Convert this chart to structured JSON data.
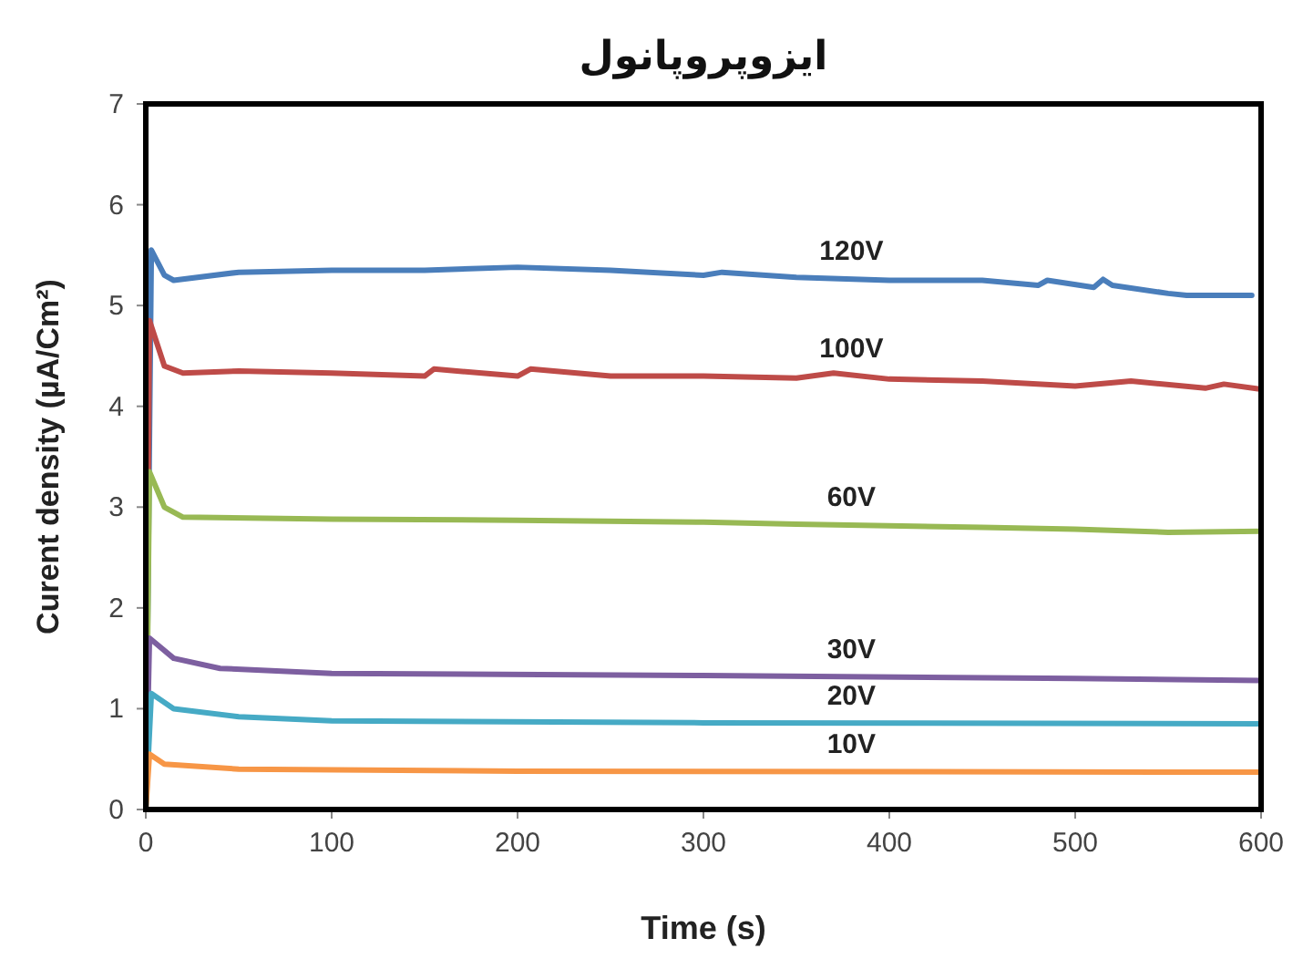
{
  "chart_data": {
    "type": "line",
    "title": "ایزوپروپانول",
    "xlabel": "Time (s)",
    "ylabel": "Curent density (µA/Cm²)",
    "xlim": [
      0,
      600
    ],
    "xticks": [
      0,
      100,
      200,
      300,
      400,
      500,
      600
    ],
    "ylim": [
      0,
      7
    ],
    "yticks": [
      0,
      1,
      2,
      3,
      4,
      5,
      6,
      7
    ],
    "grid": false,
    "legend": false,
    "series": [
      {
        "name": "120V",
        "color": "#4a7ebb",
        "x": [
          0,
          3,
          10,
          15,
          50,
          100,
          150,
          200,
          250,
          300,
          310,
          350,
          400,
          450,
          480,
          485,
          510,
          515,
          520,
          550,
          560,
          595
        ],
        "values": [
          0,
          5.55,
          5.3,
          5.25,
          5.33,
          5.35,
          5.35,
          5.38,
          5.35,
          5.3,
          5.33,
          5.28,
          5.25,
          5.25,
          5.2,
          5.25,
          5.18,
          5.26,
          5.2,
          5.12,
          5.1,
          5.1
        ]
      },
      {
        "name": "100V",
        "color": "#be4b48",
        "x": [
          0,
          2,
          10,
          20,
          50,
          100,
          150,
          155,
          200,
          207,
          250,
          300,
          350,
          370,
          400,
          450,
          500,
          530,
          570,
          580,
          600
        ],
        "values": [
          0,
          4.85,
          4.4,
          4.33,
          4.35,
          4.33,
          4.3,
          4.37,
          4.3,
          4.37,
          4.3,
          4.3,
          4.28,
          4.33,
          4.27,
          4.25,
          4.2,
          4.25,
          4.18,
          4.22,
          4.17
        ]
      },
      {
        "name": "60V",
        "color": "#98b954",
        "x": [
          0,
          2,
          10,
          20,
          100,
          200,
          300,
          350,
          450,
          500,
          550,
          600
        ],
        "values": [
          0,
          3.35,
          3.0,
          2.9,
          2.88,
          2.87,
          2.85,
          2.83,
          2.8,
          2.78,
          2.75,
          2.76
        ]
      },
      {
        "name": "30V",
        "color": "#7d5fa0",
        "x": [
          0,
          2,
          15,
          40,
          100,
          300,
          500,
          600
        ],
        "values": [
          0,
          1.7,
          1.5,
          1.4,
          1.35,
          1.33,
          1.3,
          1.28
        ]
      },
      {
        "name": "20V",
        "color": "#46aac5",
        "x": [
          0,
          3,
          15,
          50,
          100,
          300,
          600
        ],
        "values": [
          0,
          1.15,
          1.0,
          0.92,
          0.88,
          0.86,
          0.85
        ]
      },
      {
        "name": "10V",
        "color": "#f79646",
        "x": [
          0,
          2,
          10,
          50,
          200,
          600
        ],
        "values": [
          0,
          0.55,
          0.45,
          0.4,
          0.38,
          0.37
        ]
      }
    ]
  }
}
